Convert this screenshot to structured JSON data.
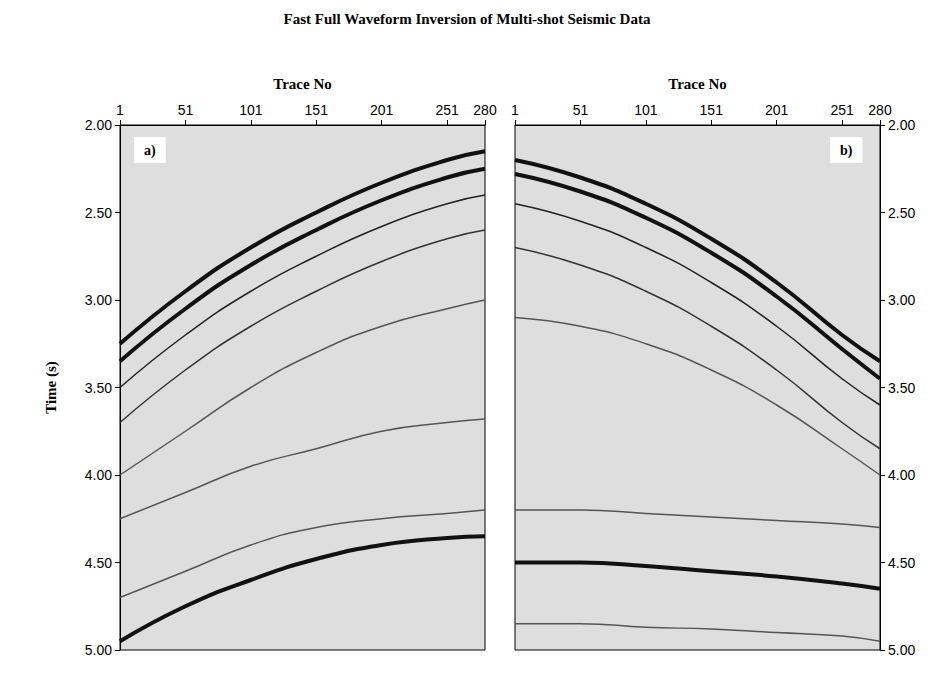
{
  "title": "Fast Full Waveform Inversion of Multi-shot Seismic Data",
  "chart_data": [
    {
      "type": "line",
      "panel": "a)",
      "x_label": "Trace No",
      "y_label": "Time (s)",
      "grid": false,
      "marker": "none",
      "x": [
        1,
        51,
        101,
        151,
        201,
        251,
        280
      ],
      "xlim": [
        1,
        280
      ],
      "xticks": [
        1,
        51,
        101,
        151,
        201,
        251,
        280
      ],
      "ylim": [
        2,
        5
      ],
      "yticks": [
        {
          "value": 2,
          "label": "2.00"
        },
        {
          "value": 2.5,
          "label": "2.50"
        },
        {
          "value": 3,
          "label": "3.00"
        },
        {
          "value": 3.5,
          "label": "3.50"
        },
        {
          "value": 4,
          "label": "4.00"
        },
        {
          "value": 4.5,
          "label": "4.50"
        },
        {
          "value": 5,
          "label": "5.00"
        }
      ],
      "series": [
        {
          "color": "#111111",
          "line_style": "thick",
          "values": [
            3.25,
            2.95,
            2.7,
            2.5,
            2.33,
            2.2,
            2.15
          ]
        },
        {
          "color": "#111111",
          "line_style": "thick",
          "values": [
            3.35,
            3.05,
            2.8,
            2.6,
            2.43,
            2.3,
            2.25
          ]
        },
        {
          "color": "#222222",
          "line_style": "thin",
          "values": [
            3.5,
            3.2,
            2.95,
            2.75,
            2.58,
            2.45,
            2.4
          ]
        },
        {
          "color": "#333333",
          "line_style": "thin",
          "values": [
            3.7,
            3.4,
            3.15,
            2.95,
            2.78,
            2.65,
            2.6
          ]
        },
        {
          "color": "#555555",
          "line_style": "thin",
          "values": [
            4.0,
            3.75,
            3.5,
            3.3,
            3.15,
            3.05,
            3.0
          ]
        },
        {
          "color": "#555555",
          "line_style": "thin",
          "values": [
            4.25,
            4.1,
            3.95,
            3.85,
            3.75,
            3.7,
            3.68
          ]
        },
        {
          "color": "#555555",
          "line_style": "thin",
          "values": [
            4.7,
            4.55,
            4.4,
            4.3,
            4.25,
            4.22,
            4.2
          ]
        },
        {
          "color": "#111111",
          "line_style": "thick",
          "values": [
            4.95,
            4.75,
            4.6,
            4.48,
            4.4,
            4.36,
            4.35
          ]
        }
      ]
    },
    {
      "type": "line",
      "panel": "b)",
      "x_label": "Trace No",
      "grid": false,
      "marker": "none",
      "x": [
        1,
        51,
        101,
        151,
        201,
        251,
        280
      ],
      "xlim": [
        1,
        280
      ],
      "xticks": [
        1,
        51,
        101,
        151,
        201,
        251,
        280
      ],
      "ylim": [
        2,
        5
      ],
      "yticks": [
        {
          "value": 2,
          "label": "2.00"
        },
        {
          "value": 2.5,
          "label": "2.50"
        },
        {
          "value": 3,
          "label": "3.00"
        },
        {
          "value": 3.5,
          "label": "3.50"
        },
        {
          "value": 4,
          "label": "4.00"
        },
        {
          "value": 4.5,
          "label": "4.50"
        },
        {
          "value": 5,
          "label": "5.00"
        }
      ],
      "series": [
        {
          "color": "#111111",
          "line_style": "thick",
          "values": [
            2.2,
            2.3,
            2.45,
            2.65,
            2.9,
            3.2,
            3.35
          ]
        },
        {
          "color": "#111111",
          "line_style": "thick",
          "values": [
            2.28,
            2.38,
            2.53,
            2.73,
            2.98,
            3.28,
            3.45
          ]
        },
        {
          "color": "#222222",
          "line_style": "thin",
          "values": [
            2.45,
            2.55,
            2.7,
            2.9,
            3.15,
            3.45,
            3.6
          ]
        },
        {
          "color": "#333333",
          "line_style": "thin",
          "values": [
            2.7,
            2.8,
            2.95,
            3.15,
            3.4,
            3.7,
            3.85
          ]
        },
        {
          "color": "#555555",
          "line_style": "thin",
          "values": [
            3.1,
            3.15,
            3.25,
            3.4,
            3.6,
            3.85,
            4.0
          ]
        },
        {
          "color": "#555555",
          "line_style": "thin",
          "values": [
            4.2,
            4.2,
            4.22,
            4.24,
            4.26,
            4.28,
            4.3
          ]
        },
        {
          "color": "#111111",
          "line_style": "thick",
          "values": [
            4.5,
            4.5,
            4.52,
            4.55,
            4.58,
            4.62,
            4.65
          ]
        },
        {
          "color": "#555555",
          "line_style": "thin",
          "values": [
            4.85,
            4.85,
            4.87,
            4.88,
            4.9,
            4.92,
            4.95
          ]
        }
      ]
    }
  ]
}
